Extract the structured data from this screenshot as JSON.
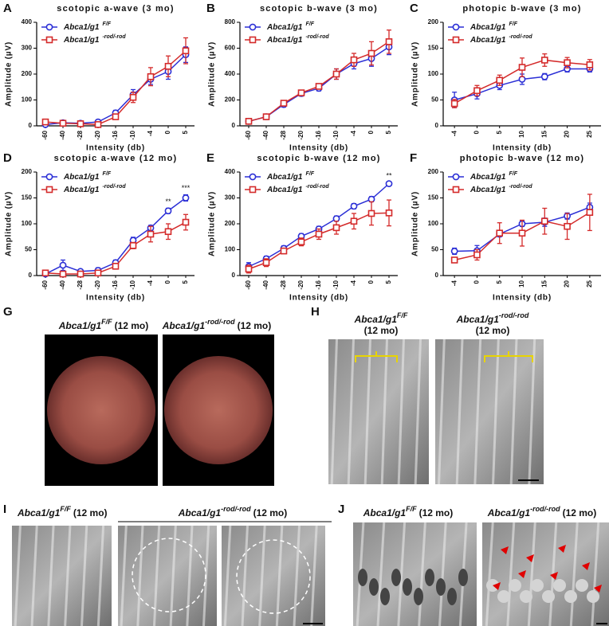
{
  "chart_data": [
    {
      "type": "line",
      "panel_label": "A",
      "title": "scotopic a-wave (3 mo)",
      "x_label": "Intensity (db)",
      "y_label": "Amplitude (µV)",
      "categories": [
        "-60",
        "-40",
        "-28",
        "-20",
        "-16",
        "-10",
        "-4",
        "0",
        "5"
      ],
      "ylim": [
        0,
        400
      ],
      "yticks": [
        0,
        100,
        200,
        300,
        400
      ],
      "series": [
        {
          "name": "Abca1/g1",
          "superscript": "F/F",
          "color": "#2b2fd6",
          "marker": "circle",
          "values": [
            5,
            12,
            10,
            15,
            50,
            120,
            180,
            210,
            275
          ],
          "errors": [
            5,
            5,
            5,
            5,
            10,
            20,
            20,
            30,
            30
          ]
        },
        {
          "name": "Abca1/g1",
          "superscript": "-rod/-rod",
          "color": "#d42a2a",
          "marker": "square",
          "values": [
            15,
            10,
            8,
            5,
            35,
            110,
            190,
            230,
            290
          ],
          "errors": [
            8,
            5,
            5,
            5,
            10,
            20,
            35,
            40,
            50
          ]
        }
      ],
      "annotations": []
    },
    {
      "type": "line",
      "panel_label": "B",
      "title": "scotopic b-wave (3 mo)",
      "x_label": "Intensity (db)",
      "y_label": "Amplitude (µV)",
      "categories": [
        "-60",
        "-40",
        "-28",
        "-20",
        "-16",
        "-10",
        "-4",
        "0",
        "5"
      ],
      "ylim": [
        0,
        800
      ],
      "yticks": [
        0,
        200,
        400,
        600,
        800
      ],
      "series": [
        {
          "name": "Abca1/g1",
          "superscript": "F/F",
          "color": "#2b2fd6",
          "marker": "circle",
          "values": [
            35,
            70,
            165,
            250,
            290,
            400,
            480,
            520,
            610
          ],
          "errors": [
            10,
            10,
            20,
            20,
            20,
            40,
            40,
            60,
            60
          ]
        },
        {
          "name": "Abca1/g1",
          "superscript": "-rod/-rod",
          "color": "#d42a2a",
          "marker": "square",
          "values": [
            35,
            70,
            175,
            255,
            305,
            400,
            510,
            560,
            650
          ],
          "errors": [
            10,
            10,
            20,
            20,
            20,
            40,
            50,
            90,
            90
          ]
        }
      ],
      "annotations": []
    },
    {
      "type": "line",
      "panel_label": "C",
      "title": "photopic b-wave (3 mo)",
      "x_label": "Intensity (db)",
      "y_label": "Amplitude (µV)",
      "categories": [
        "-4",
        "0",
        "5",
        "10",
        "15",
        "20",
        "25"
      ],
      "ylim": [
        0,
        200
      ],
      "yticks": [
        0,
        50,
        100,
        150,
        200
      ],
      "series": [
        {
          "name": "Abca1/g1",
          "superscript": "F/F",
          "color": "#2b2fd6",
          "marker": "circle",
          "values": [
            50,
            62,
            78,
            90,
            95,
            110,
            110
          ],
          "errors": [
            15,
            10,
            8,
            10,
            6,
            6,
            6
          ]
        },
        {
          "name": "Abca1/g1",
          "superscript": "-rod/-rod",
          "color": "#d42a2a",
          "marker": "square",
          "values": [
            43,
            68,
            88,
            113,
            127,
            122,
            118
          ],
          "errors": [
            8,
            10,
            10,
            18,
            12,
            10,
            10
          ]
        }
      ],
      "annotations": []
    },
    {
      "type": "line",
      "panel_label": "D",
      "title": "scotopic a-wave (12 mo)",
      "x_label": "Intensity (db)",
      "y_label": "Amplitude (µV)",
      "categories": [
        "-60",
        "-40",
        "-28",
        "-20",
        "-16",
        "-10",
        "-4",
        "0",
        "5"
      ],
      "ylim": [
        0,
        200
      ],
      "yticks": [
        0,
        50,
        100,
        150,
        200
      ],
      "series": [
        {
          "name": "Abca1/g1",
          "superscript": "F/F",
          "color": "#2b2fd6",
          "marker": "circle",
          "values": [
            3,
            20,
            8,
            10,
            25,
            68,
            92,
            125,
            150
          ],
          "errors": [
            3,
            10,
            3,
            5,
            5,
            6,
            5,
            5,
            6
          ]
        },
        {
          "name": "Abca1/g1",
          "superscript": "-rod/-rod",
          "color": "#d42a2a",
          "marker": "square",
          "values": [
            5,
            3,
            3,
            5,
            18,
            58,
            80,
            85,
            103
          ],
          "errors": [
            3,
            3,
            3,
            3,
            5,
            6,
            15,
            15,
            15
          ]
        }
      ],
      "annotations": [
        {
          "text": "**",
          "x": "0"
        },
        {
          "text": "***",
          "x": "5"
        }
      ]
    },
    {
      "type": "line",
      "panel_label": "E",
      "title": "scotopic b-wave (12 mo)",
      "x_label": "Intensity (db)",
      "y_label": "Amplitude (µV)",
      "categories": [
        "-60",
        "-40",
        "-28",
        "-20",
        "-16",
        "-10",
        "-4",
        "0",
        "5"
      ],
      "ylim": [
        0,
        400
      ],
      "yticks": [
        0,
        100,
        200,
        300,
        400
      ],
      "series": [
        {
          "name": "Abca1/g1",
          "superscript": "F/F",
          "color": "#2b2fd6",
          "marker": "circle",
          "values": [
            35,
            65,
            105,
            152,
            180,
            220,
            268,
            295,
            355
          ],
          "errors": [
            15,
            10,
            10,
            10,
            10,
            10,
            10,
            10,
            5
          ]
        },
        {
          "name": "Abca1/g1",
          "superscript": "-rod/-rod",
          "color": "#d42a2a",
          "marker": "square",
          "values": [
            25,
            50,
            95,
            130,
            160,
            185,
            210,
            240,
            242
          ],
          "errors": [
            15,
            15,
            10,
            15,
            20,
            25,
            30,
            45,
            50
          ]
        }
      ],
      "annotations": [
        {
          "text": "**",
          "x": "5"
        }
      ]
    },
    {
      "type": "line",
      "panel_label": "F",
      "title": "photopic b-wave (12 mo)",
      "x_label": "Intensity (db)",
      "y_label": "Amplitude (µV)",
      "categories": [
        "-4",
        "0",
        "5",
        "10",
        "15",
        "20",
        "25"
      ],
      "ylim": [
        0,
        200
      ],
      "yticks": [
        0,
        50,
        100,
        150,
        200
      ],
      "series": [
        {
          "name": "Abca1/g1",
          "superscript": "F/F",
          "color": "#2b2fd6",
          "marker": "circle",
          "values": [
            47,
            48,
            80,
            100,
            103,
            115,
            132
          ],
          "errors": [
            6,
            10,
            5,
            5,
            8,
            6,
            8
          ]
        },
        {
          "name": "Abca1/g1",
          "superscript": "-rod/-rod",
          "color": "#d42a2a",
          "marker": "square",
          "values": [
            30,
            40,
            82,
            82,
            105,
            95,
            122
          ],
          "errors": [
            5,
            10,
            20,
            25,
            25,
            25,
            35
          ]
        }
      ],
      "annotations": []
    }
  ],
  "image_panels": [
    {
      "panel_label": "G",
      "captions": [
        {
          "italic": "Abca1/g1",
          "sup": "F/F",
          "text": "(12 mo)"
        },
        {
          "italic": "Abca1/g1",
          "sup": "-rod/-rod",
          "text": "(12 mo)"
        }
      ]
    },
    {
      "panel_label": "H",
      "captions": [
        {
          "italic": "Abca1/g1",
          "sup": "F/F",
          "text": "(12 mo)"
        },
        {
          "italic": "Abca1/g1",
          "sup": "-rod/-rod",
          "text": "(12 mo)"
        }
      ]
    },
    {
      "panel_label": "I",
      "captions": [
        {
          "italic": "Abca1/g1",
          "sup": "F/F",
          "text": "(12 mo)"
        },
        {
          "italic": "Abca1/g1",
          "sup": "-rod/-rod",
          "text": "(12 mo)"
        }
      ]
    },
    {
      "panel_label": "J",
      "captions": [
        {
          "italic": "Abca1/g1",
          "sup": "F/F",
          "text": "(12 mo)"
        },
        {
          "italic": "Abca1/g1",
          "sup": "-rod/-rod",
          "text": "(12 mo)"
        }
      ]
    }
  ]
}
